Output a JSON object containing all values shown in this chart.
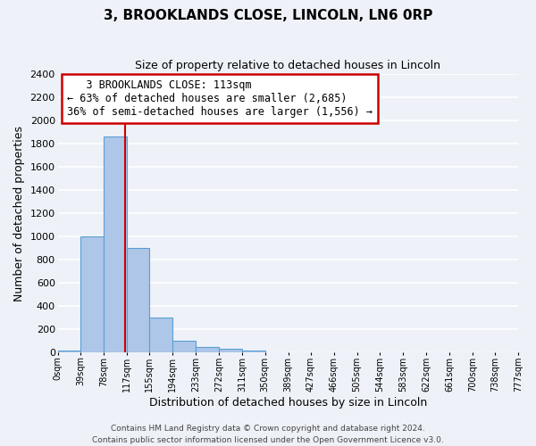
{
  "title": "3, BROOKLANDS CLOSE, LINCOLN, LN6 0RP",
  "subtitle": "Size of property relative to detached houses in Lincoln",
  "xlabel": "Distribution of detached houses by size in Lincoln",
  "ylabel": "Number of detached properties",
  "bar_color": "#aec6e8",
  "bar_edge_color": "#5a9fd4",
  "background_color": "#eef2f8",
  "grid_color": "#ffffff",
  "vline_x": 113,
  "vline_color": "#cc0000",
  "bin_edges": [
    0,
    39,
    78,
    117,
    155,
    194,
    233,
    272,
    311,
    350,
    389,
    427,
    466,
    505,
    544,
    583,
    622,
    661,
    700,
    738,
    777
  ],
  "bin_labels": [
    "0sqm",
    "39sqm",
    "78sqm",
    "117sqm",
    "155sqm",
    "194sqm",
    "233sqm",
    "272sqm",
    "311sqm",
    "350sqm",
    "389sqm",
    "427sqm",
    "466sqm",
    "505sqm",
    "544sqm",
    "583sqm",
    "622sqm",
    "661sqm",
    "700sqm",
    "738sqm",
    "777sqm"
  ],
  "bar_heights": [
    20,
    1005,
    1865,
    900,
    300,
    105,
    45,
    30,
    20,
    0,
    0,
    0,
    0,
    0,
    0,
    0,
    0,
    0,
    0,
    0
  ],
  "ylim": [
    0,
    2400
  ],
  "yticks": [
    0,
    200,
    400,
    600,
    800,
    1000,
    1200,
    1400,
    1600,
    1800,
    2000,
    2200,
    2400
  ],
  "annotation_title": "3 BROOKLANDS CLOSE: 113sqm",
  "annotation_line1": "← 63% of detached houses are smaller (2,685)",
  "annotation_line2": "36% of semi-detached houses are larger (1,556) →",
  "annotation_box_color": "#ffffff",
  "annotation_box_edge": "#cc0000",
  "footer1": "Contains HM Land Registry data © Crown copyright and database right 2024.",
  "footer2": "Contains public sector information licensed under the Open Government Licence v3.0."
}
